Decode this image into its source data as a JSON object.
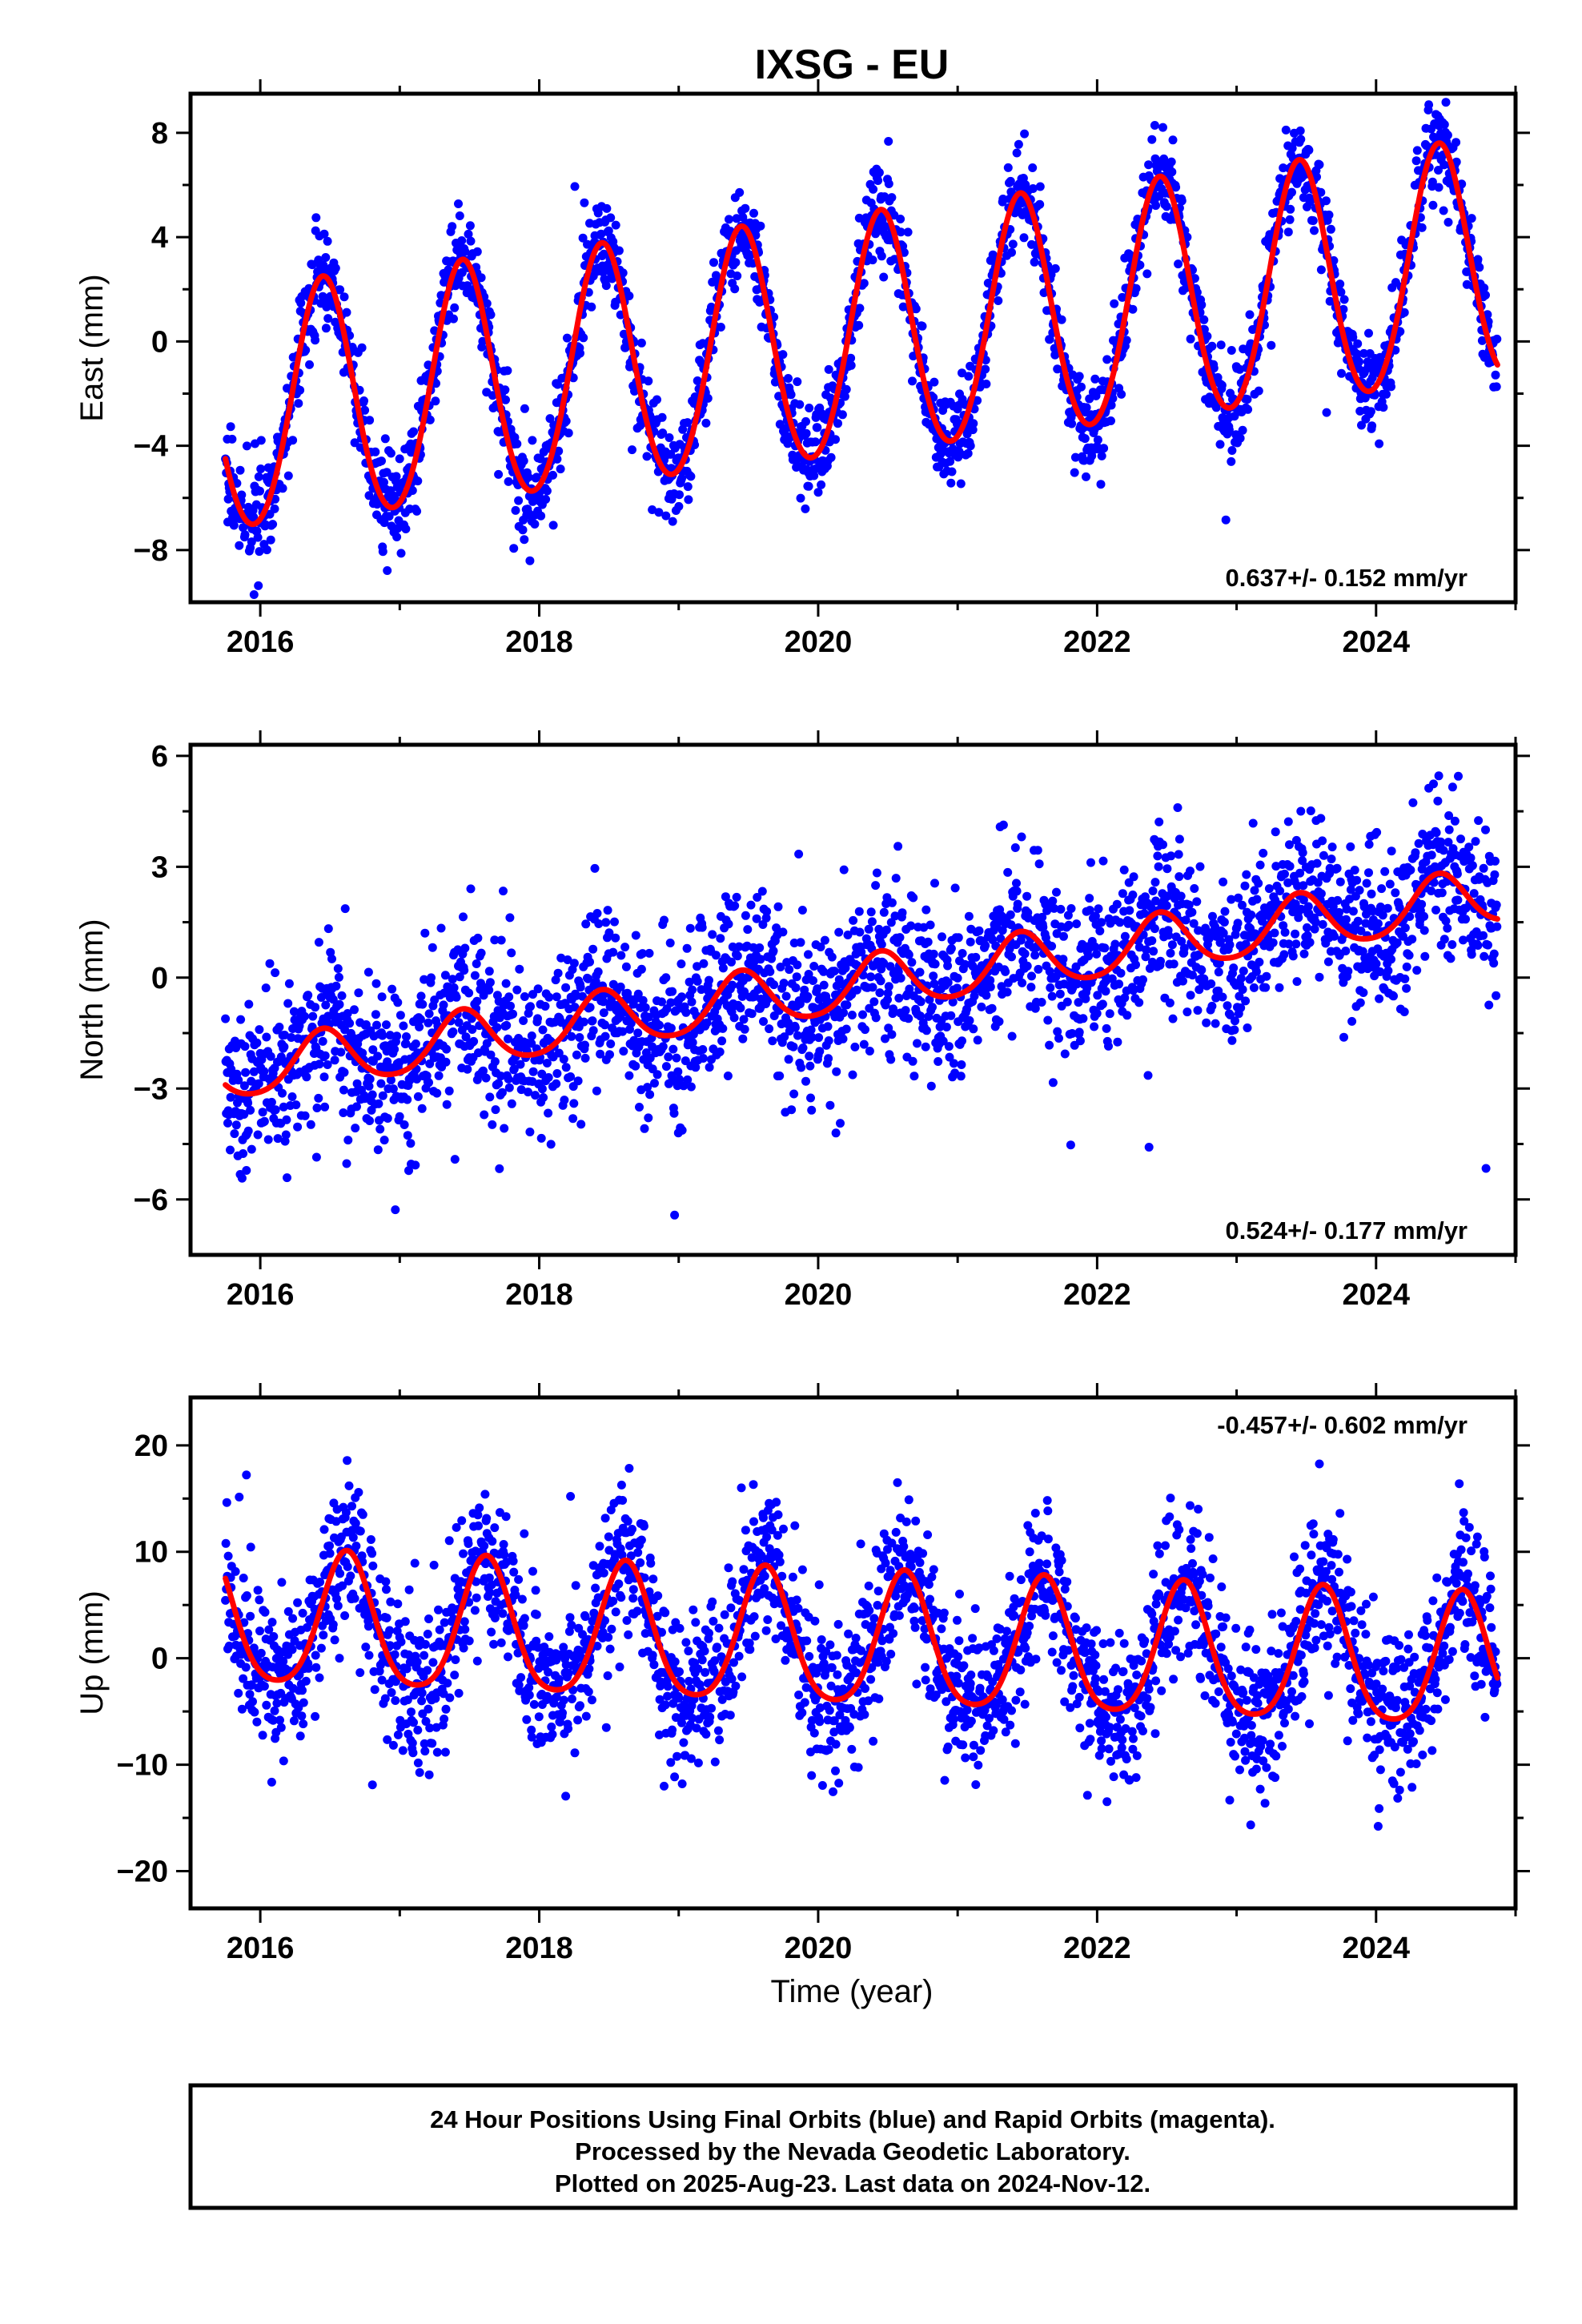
{
  "chart_data": {
    "title": "IXSG - EU",
    "type": "scatter",
    "xlabel": "Time (year)",
    "xlim": [
      2015.5,
      2025.0
    ],
    "x_ticks": [
      "2016",
      "2018",
      "2020",
      "2022",
      "2024"
    ],
    "x_tick_values": [
      2016,
      2018,
      2020,
      2022,
      2024
    ],
    "marker_color": "#0000ff",
    "fit_color": "#ff0000",
    "data_start": 2015.75,
    "data_end": 2024.87,
    "panels": [
      {
        "key": "east",
        "ylabel": "East (mm)",
        "ylim": [
          -10,
          9.5
        ],
        "y_ticks": [
          "8",
          "4",
          "0",
          "−4",
          "−8"
        ],
        "y_tick_values": [
          8,
          4,
          0,
          -4,
          -8
        ],
        "rate_text": "0.637+/- 0.152 mm/yr",
        "rate_position": "bottom-right",
        "fit": {
          "y_at_start": -4.5,
          "trend_mm_per_yr": 0.637,
          "annual_amplitude_mm": 4.6,
          "annual_peak_year_fraction": 0.45,
          "semiannual_amplitude_mm": 0.3
        },
        "scatter_spread_mm": 0.9
      },
      {
        "key": "north",
        "ylabel": "North (mm)",
        "ylim": [
          -7.5,
          6.3
        ],
        "y_ticks": [
          "6",
          "3",
          "0",
          "−3",
          "−6"
        ],
        "y_tick_values": [
          6,
          3,
          0,
          -3,
          -6
        ],
        "rate_text": "0.524+/- 0.177 mm/yr",
        "rate_position": "bottom-right",
        "fit": {
          "y_at_start": -2.9,
          "trend_mm_per_yr": 0.524,
          "annual_amplitude_mm": 0.75,
          "annual_peak_year_fraction": 0.45,
          "semiannual_amplitude_mm": 0.1
        },
        "scatter_spread_mm": 1.1
      },
      {
        "key": "up",
        "ylabel": "Up (mm)",
        "ylim": [
          -23.5,
          24.5
        ],
        "y_ticks": [
          "20",
          "10",
          "0",
          "−10",
          "−20"
        ],
        "y_tick_values": [
          20,
          10,
          0,
          -10,
          -20
        ],
        "rate_text": "-0.457+/- 0.602 mm/yr",
        "rate_position": "top-right",
        "fit": {
          "y_at_start": 7.5,
          "trend_mm_per_yr": -0.457,
          "annual_amplitude_mm": 6.2,
          "annual_peak_year_fraction": 0.62,
          "semiannual_amplitude_mm": 1.0
        },
        "scatter_spread_mm": 3.6
      }
    ]
  },
  "footer": {
    "line1": "24 Hour Positions Using Final Orbits (blue) and Rapid Orbits (magenta).",
    "line2": "Processed by the Nevada Geodetic Laboratory.",
    "line3": "Plotted on 2025-Aug-23. Last data on 2024-Nov-12."
  }
}
